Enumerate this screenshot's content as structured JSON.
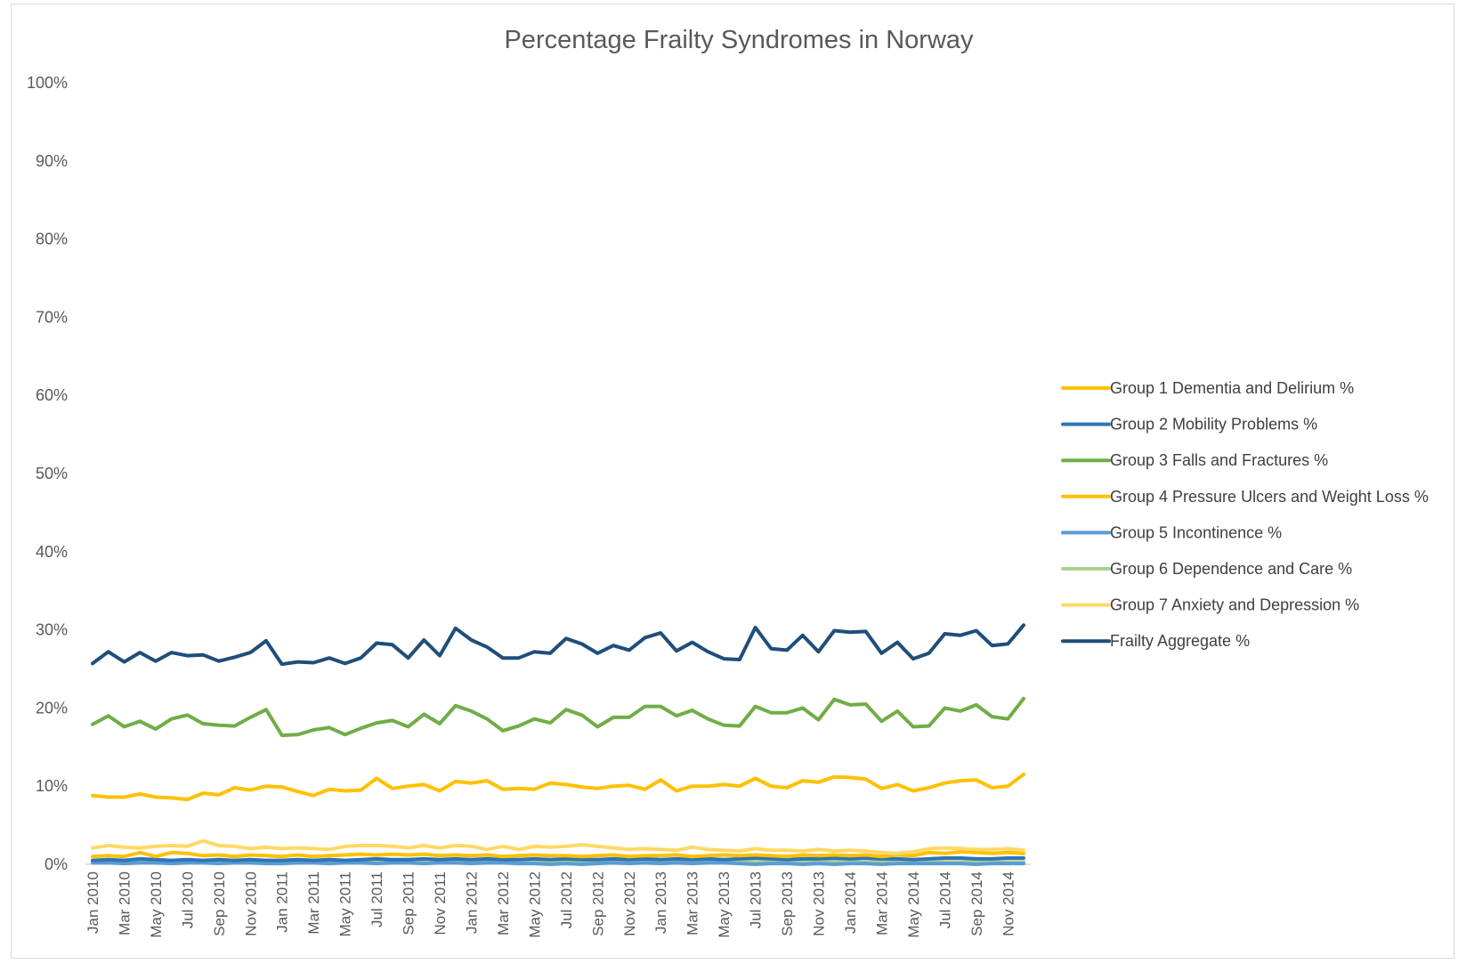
{
  "chart_data": {
    "type": "line",
    "title": "Percentage Frailty Syndromes in Norway",
    "xlabel": "",
    "ylabel": "",
    "ylim": [
      0,
      100
    ],
    "y_ticks": [
      "0%",
      "10%",
      "20%",
      "30%",
      "40%",
      "50%",
      "60%",
      "70%",
      "80%",
      "90%",
      "100%"
    ],
    "grid": false,
    "legend_position": "right",
    "x": [
      "Jan 2010",
      "Feb 2010",
      "Mar 2010",
      "Apr 2010",
      "May 2010",
      "Jun 2010",
      "Jul 2010",
      "Aug 2010",
      "Sep 2010",
      "Oct 2010",
      "Nov 2010",
      "Dec 2010",
      "Jan 2011",
      "Feb 2011",
      "Mar 2011",
      "Apr 2011",
      "May 2011",
      "Jun 2011",
      "Jul 2011",
      "Aug 2011",
      "Sep 2011",
      "Oct 2011",
      "Nov 2011",
      "Dec 2011",
      "Jan 2012",
      "Feb 2012",
      "Mar 2012",
      "Apr 2012",
      "May 2012",
      "Jun 2012",
      "Jul 2012",
      "Aug 2012",
      "Sep 2012",
      "Oct 2012",
      "Nov 2012",
      "Dec 2012",
      "Jan 2013",
      "Feb 2013",
      "Mar 2013",
      "Apr 2013",
      "May 2013",
      "Jun 2013",
      "Jul 2013",
      "Aug 2013",
      "Sep 2013",
      "Oct 2013",
      "Nov 2013",
      "Dec 2013",
      "Jan 2014",
      "Feb 2014",
      "Mar 2014",
      "Apr 2014",
      "May 2014",
      "Jun 2014",
      "Jul 2014",
      "Aug 2014",
      "Sep 2014",
      "Oct 2014",
      "Nov 2014",
      "Dec 2014"
    ],
    "x_tick_labels": [
      "Jan 2010",
      "Mar 2010",
      "May 2010",
      "Jul 2010",
      "Sep 2010",
      "Nov 2010",
      "Jan 2011",
      "Mar 2011",
      "May 2011",
      "Jul 2011",
      "Sep 2011",
      "Nov 2011",
      "Jan 2012",
      "Mar 2012",
      "May 2012",
      "Jul 2012",
      "Sep 2012",
      "Nov 2012",
      "Jan 2013",
      "Mar 2013",
      "May 2013",
      "Jul 2013",
      "Sep 2013",
      "Nov 2013",
      "Jan 2014",
      "Mar 2014",
      "May 2014",
      "Jul 2014",
      "Sep 2014",
      "Nov 2014"
    ],
    "series": [
      {
        "name": "Group 1 Dementia and Delirium %",
        "color": "#FFC000",
        "values": [
          8.8,
          8.6,
          8.6,
          9.0,
          8.6,
          8.5,
          8.3,
          9.1,
          8.9,
          9.8,
          9.5,
          10.0,
          9.9,
          9.3,
          8.8,
          9.6,
          9.4,
          9.5,
          11.0,
          9.7,
          10.0,
          10.2,
          9.4,
          10.6,
          10.4,
          10.7,
          9.6,
          9.7,
          9.6,
          10.4,
          10.2,
          9.9,
          9.7,
          10.0,
          10.1,
          9.6,
          10.8,
          9.4,
          10.0,
          10.0,
          10.2,
          10.0,
          11.0,
          10.0,
          9.8,
          10.7,
          10.5,
          11.2,
          11.1,
          10.9,
          9.7,
          10.2,
          9.4,
          9.8,
          10.4,
          10.7,
          10.8,
          9.8,
          10.0,
          11.5
        ]
      },
      {
        "name": "Group 2 Mobility Problems %",
        "color": "#2E75B6",
        "values": [
          0.5,
          0.6,
          0.5,
          0.7,
          0.6,
          0.5,
          0.6,
          0.5,
          0.6,
          0.5,
          0.6,
          0.5,
          0.5,
          0.6,
          0.5,
          0.6,
          0.5,
          0.6,
          0.7,
          0.6,
          0.6,
          0.7,
          0.6,
          0.7,
          0.6,
          0.7,
          0.6,
          0.6,
          0.7,
          0.6,
          0.7,
          0.6,
          0.6,
          0.7,
          0.6,
          0.7,
          0.6,
          0.7,
          0.6,
          0.7,
          0.6,
          0.7,
          0.8,
          0.7,
          0.6,
          0.7,
          0.7,
          0.8,
          0.7,
          0.8,
          0.7,
          0.7,
          0.6,
          0.7,
          0.8,
          0.8,
          0.7,
          0.7,
          0.8,
          0.8
        ]
      },
      {
        "name": "Group 3 Falls and Fractures %",
        "color": "#70AD47",
        "values": [
          17.9,
          19.0,
          17.6,
          18.3,
          17.3,
          18.6,
          19.1,
          18.0,
          17.8,
          17.7,
          18.8,
          19.8,
          16.5,
          16.6,
          17.2,
          17.5,
          16.6,
          17.4,
          18.1,
          18.4,
          17.6,
          19.2,
          18.0,
          20.3,
          19.6,
          18.6,
          17.1,
          17.7,
          18.6,
          18.1,
          19.8,
          19.1,
          17.6,
          18.8,
          18.8,
          20.2,
          20.2,
          19.0,
          19.7,
          18.6,
          17.8,
          17.7,
          20.2,
          19.4,
          19.4,
          20.0,
          18.5,
          21.1,
          20.4,
          20.5,
          18.3,
          19.6,
          17.6,
          17.7,
          20.0,
          19.6,
          20.4,
          18.9,
          18.6,
          21.2
        ]
      },
      {
        "name": "Group 4 Pressure Ulcers and Weight Loss %",
        "color": "#FFC000",
        "values": [
          1.0,
          1.1,
          1.0,
          1.5,
          1.0,
          1.5,
          1.4,
          1.1,
          1.2,
          1.0,
          1.2,
          1.1,
          1.0,
          1.2,
          1.0,
          1.1,
          1.2,
          1.3,
          1.2,
          1.3,
          1.2,
          1.3,
          1.1,
          1.2,
          1.1,
          1.2,
          1.0,
          1.1,
          1.2,
          1.1,
          1.1,
          1.0,
          1.1,
          1.2,
          1.0,
          1.1,
          1.1,
          1.2,
          1.0,
          1.1,
          1.2,
          1.1,
          1.2,
          1.1,
          1.0,
          1.2,
          1.1,
          1.2,
          1.1,
          1.2,
          1.0,
          1.2,
          1.1,
          1.5,
          1.4,
          1.6,
          1.5,
          1.4,
          1.5,
          1.4
        ]
      },
      {
        "name": "Group 5 Incontinence %",
        "color": "#5B9BD5",
        "values": [
          0.2,
          0.2,
          0.1,
          0.2,
          0.2,
          0.1,
          0.2,
          0.2,
          0.1,
          0.2,
          0.2,
          0.1,
          0.1,
          0.2,
          0.2,
          0.1,
          0.2,
          0.2,
          0.1,
          0.2,
          0.2,
          0.1,
          0.2,
          0.2,
          0.1,
          0.2,
          0.2,
          0.1,
          0.1,
          0.0,
          0.1,
          0.0,
          0.1,
          0.2,
          0.1,
          0.2,
          0.1,
          0.2,
          0.1,
          0.2,
          0.2,
          0.1,
          0.0,
          0.1,
          0.1,
          0.0,
          0.1,
          0.0,
          0.1,
          0.1,
          0.0,
          0.1,
          0.1,
          0.1,
          0.1,
          0.1,
          0.0,
          0.1,
          0.1,
          0.1
        ]
      },
      {
        "name": "Group 6 Dependence and Care %",
        "color": "#A9D18E",
        "values": [
          0.3,
          0.3,
          0.4,
          0.3,
          0.3,
          0.4,
          0.3,
          0.4,
          0.3,
          0.3,
          0.4,
          0.3,
          0.3,
          0.4,
          0.3,
          0.3,
          0.4,
          0.3,
          0.3,
          0.4,
          0.3,
          0.3,
          0.4,
          0.3,
          0.3,
          0.3,
          0.4,
          0.3,
          0.3,
          0.4,
          0.3,
          0.3,
          0.4,
          0.3,
          0.3,
          0.4,
          0.3,
          0.3,
          0.4,
          0.3,
          0.3,
          0.4,
          0.3,
          0.3,
          0.4,
          0.3,
          0.3,
          0.4,
          0.3,
          0.3,
          0.4,
          0.3,
          0.3,
          0.4,
          0.3,
          0.3,
          0.4,
          0.3,
          0.3,
          0.3
        ]
      },
      {
        "name": "Group 7 Anxiety and Depression %",
        "color": "#FFD966",
        "values": [
          2.1,
          2.4,
          2.2,
          2.1,
          2.3,
          2.4,
          2.3,
          3.0,
          2.4,
          2.3,
          2.0,
          2.2,
          2.0,
          2.1,
          2.0,
          1.9,
          2.3,
          2.4,
          2.4,
          2.3,
          2.1,
          2.4,
          2.1,
          2.4,
          2.3,
          1.9,
          2.3,
          1.9,
          2.3,
          2.2,
          2.3,
          2.5,
          2.3,
          2.1,
          1.9,
          2.0,
          1.9,
          1.8,
          2.2,
          1.9,
          1.8,
          1.7,
          2.0,
          1.8,
          1.8,
          1.7,
          1.9,
          1.7,
          1.8,
          1.7,
          1.5,
          1.4,
          1.6,
          2.0,
          2.1,
          2.0,
          1.9,
          1.9,
          2.0,
          1.8
        ]
      },
      {
        "name": "Frailty Aggregate %",
        "color": "#1F4E79",
        "values": [
          25.7,
          27.2,
          25.9,
          27.1,
          26.0,
          27.1,
          26.7,
          26.8,
          26.0,
          26.5,
          27.1,
          28.6,
          25.6,
          25.9,
          25.8,
          26.4,
          25.7,
          26.4,
          28.3,
          28.1,
          26.4,
          28.7,
          26.7,
          30.2,
          28.7,
          27.8,
          26.4,
          26.4,
          27.2,
          27.0,
          28.9,
          28.2,
          27.0,
          28.0,
          27.4,
          29.0,
          29.6,
          27.3,
          28.4,
          27.2,
          26.3,
          26.2,
          30.3,
          27.6,
          27.4,
          29.3,
          27.2,
          29.9,
          29.7,
          29.8,
          27.0,
          28.4,
          26.3,
          27.0,
          29.5,
          29.3,
          29.9,
          28.0,
          28.2,
          30.6
        ]
      }
    ]
  }
}
